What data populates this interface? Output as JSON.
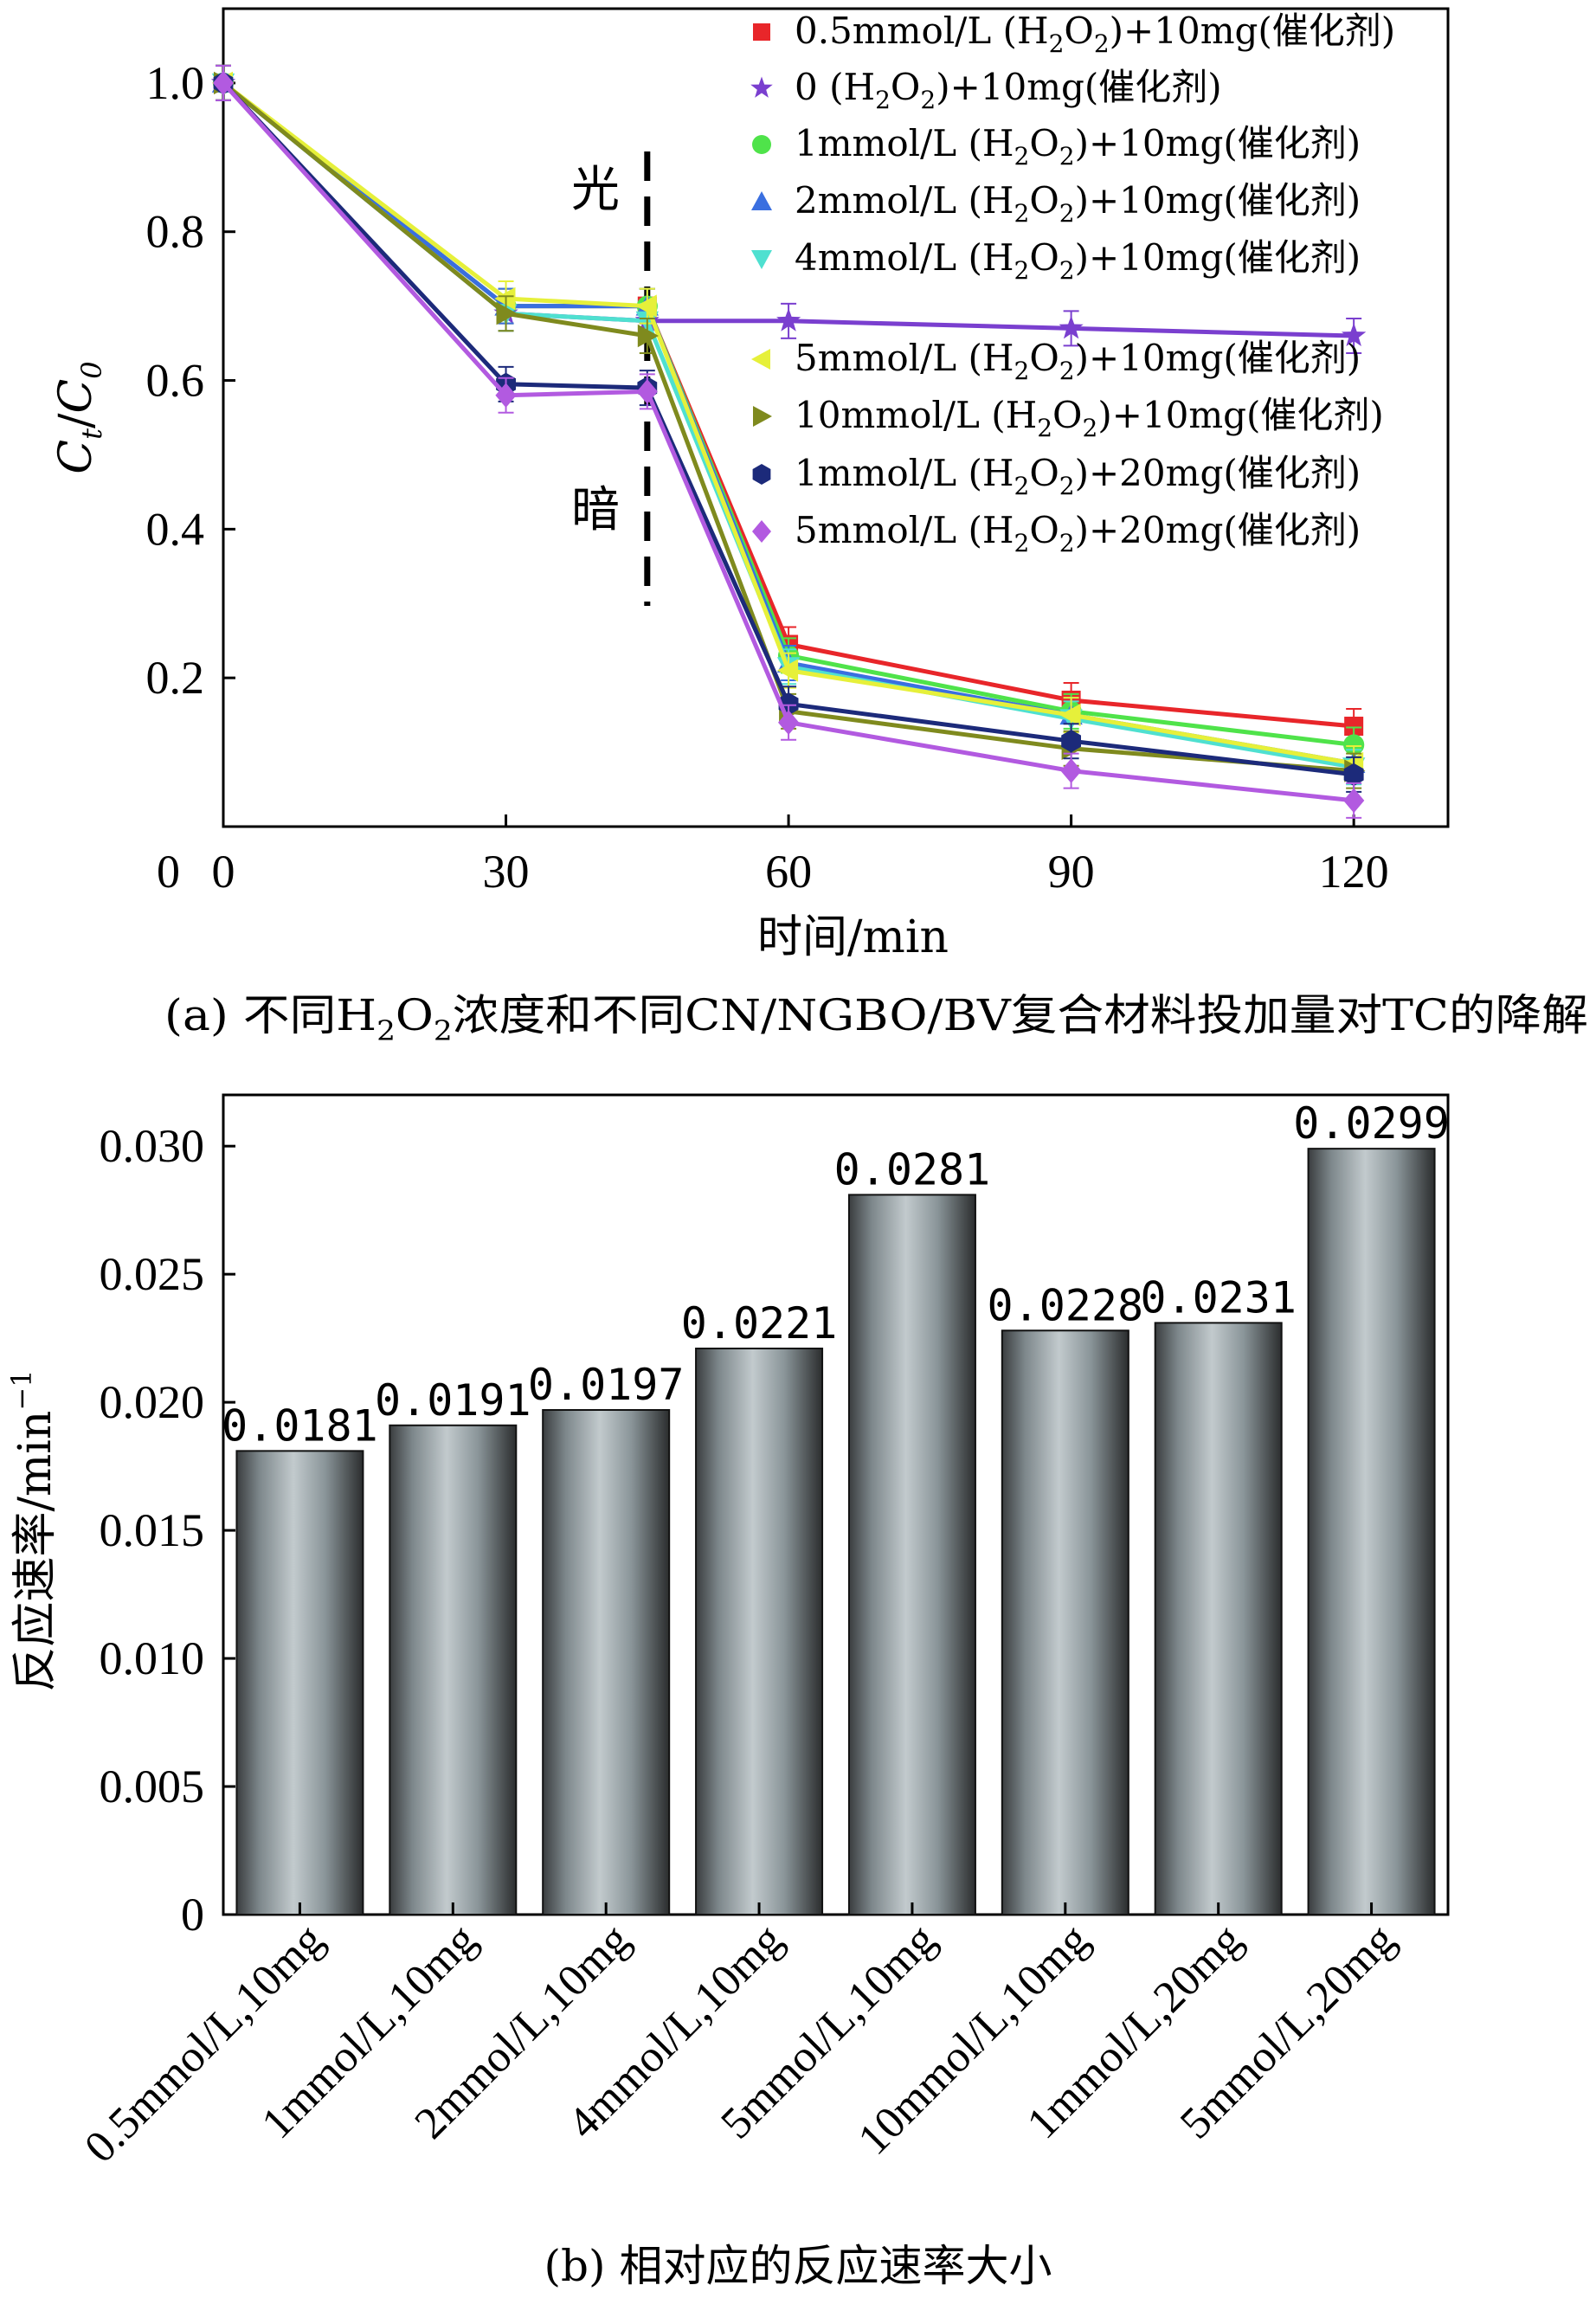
{
  "chart_data": [
    {
      "type": "line",
      "title": "",
      "caption": "(a) 不同H2O2浓度和不同CN/NGBO/BV复合材料投加量对TC的降解",
      "caption_parts": [
        "(a) 不同H",
        "2",
        "O",
        "2",
        "浓度和不同CN/NGBO/BV复合材料投加量对TC的降解"
      ],
      "xlabel": "时间/min",
      "ylabel": "Ct/C0",
      "ylabel_parts": {
        "c1": "C",
        "s1": "t",
        "sep": "/",
        "c2": "C",
        "s2": "0"
      },
      "xlim": [
        0,
        130
      ],
      "ylim": [
        0,
        1.1
      ],
      "x_ticks": [
        0,
        30,
        60,
        90,
        120
      ],
      "x_tick_labels": [
        "0",
        "30",
        "60",
        "90",
        "120"
      ],
      "y_ticks": [
        0.2,
        0.4,
        0.6,
        0.8,
        1.0
      ],
      "y_tick_labels": [
        "0.2",
        "0.4",
        "0.6",
        "0.8",
        "1.0"
      ],
      "annotations": {
        "light": "光",
        "dark": "暗",
        "divider_x": 45
      },
      "legend_position": "top-right",
      "x": [
        0,
        30,
        45,
        60,
        90,
        120
      ],
      "series": [
        {
          "name": "0.5mmol/L (H2O2)+10mg(催化剂)",
          "prefix": "0.5mmol/L (H",
          "suffix": ")+10mg(催化剂)",
          "color": "#e8262a",
          "marker": "square",
          "values": [
            1.0,
            0.7,
            0.7,
            0.245,
            0.17,
            0.135
          ]
        },
        {
          "name": "0 (H2O2)+10mg(催化剂)",
          "prefix": "0 (H",
          "suffix": ")+10mg(催化剂)",
          "color": "#7a3fcf",
          "marker": "star",
          "values": [
            1.0,
            0.69,
            0.68,
            0.68,
            0.67,
            0.66
          ]
        },
        {
          "name": "1mmol/L (H2O2)+10mg(催化剂)",
          "prefix": "1mmol/L (H",
          "suffix": ")+10mg(催化剂)",
          "color": "#4fe34a",
          "marker": "circle",
          "values": [
            1.0,
            0.7,
            0.7,
            0.23,
            0.155,
            0.11
          ]
        },
        {
          "name": "2mmol/L (H2O2)+10mg(催化剂)",
          "prefix": "2mmol/L (H",
          "suffix": ")+10mg(催化剂)",
          "color": "#3a6fe0",
          "marker": "triangle-up",
          "values": [
            1.0,
            0.7,
            0.7,
            0.22,
            0.15,
            0.085
          ]
        },
        {
          "name": "4mmol/L (H2O2)+10mg(催化剂)",
          "prefix": "4mmol/L (H",
          "suffix": ")+10mg(催化剂)",
          "color": "#4fe0d0",
          "marker": "triangle-down",
          "values": [
            1.0,
            0.69,
            0.68,
            0.215,
            0.145,
            0.08
          ]
        },
        {
          "name": "5mmol/L (H2O2)+10mg(催化剂)",
          "prefix": "5mmol/L (H",
          "suffix": ")+10mg(催化剂)",
          "color": "#e6f03a",
          "marker": "triangle-left",
          "values": [
            1.0,
            0.71,
            0.7,
            0.21,
            0.15,
            0.085
          ]
        },
        {
          "name": "10mmol/L (H2O2)+10mg(催化剂)",
          "prefix": "10mmol/L (H",
          "suffix": ")+10mg(催化剂)",
          "color": "#7f8a1e",
          "marker": "triangle-right",
          "values": [
            1.0,
            0.69,
            0.66,
            0.155,
            0.105,
            0.075
          ]
        },
        {
          "name": "1mmol/L (H2O2)+20mg(催化剂)",
          "prefix": "1mmol/L (H",
          "suffix": ")+20mg(催化剂)",
          "color": "#1c2a7a",
          "marker": "hexagon",
          "values": [
            1.0,
            0.595,
            0.59,
            0.165,
            0.115,
            0.07
          ]
        },
        {
          "name": "5mmol/L (H2O2)+20mg(催化剂)",
          "prefix": "5mmol/L (H",
          "suffix": ")+20mg(催化剂)",
          "color": "#b25ae0",
          "marker": "diamond",
          "values": [
            1.0,
            0.58,
            0.585,
            0.14,
            0.075,
            0.035
          ]
        }
      ]
    },
    {
      "type": "bar",
      "title": "",
      "caption": "(b) 相对应的反应速率大小",
      "xlabel": "",
      "ylabel": "反应速率/min",
      "ylabel_sup": "−1",
      "ylim": [
        0,
        0.032
      ],
      "y_ticks": [
        0,
        0.005,
        0.01,
        0.015,
        0.02,
        0.025,
        0.03
      ],
      "y_tick_labels": [
        "0",
        "0.005",
        "0.010",
        "0.015",
        "0.020",
        "0.025",
        "0.030"
      ],
      "categories": [
        "0.5mmol/L,10mg",
        "1mmol/L,10mg",
        "2mmol/L,10mg",
        "4mmol/L,10mg",
        "5mmol/L,10mg",
        "10mmol/L,10mg",
        "1mmol/L,20mg",
        "5mmol/L,20mg"
      ],
      "values": [
        0.0181,
        0.0191,
        0.0197,
        0.0221,
        0.0281,
        0.0228,
        0.0231,
        0.0299
      ],
      "value_labels": [
        "0.0181",
        "0.0191",
        "0.0197",
        "0.0221",
        "0.0281",
        "0.0228",
        "0.0231",
        "0.0299"
      ],
      "bar_color": "#8e979b"
    }
  ]
}
